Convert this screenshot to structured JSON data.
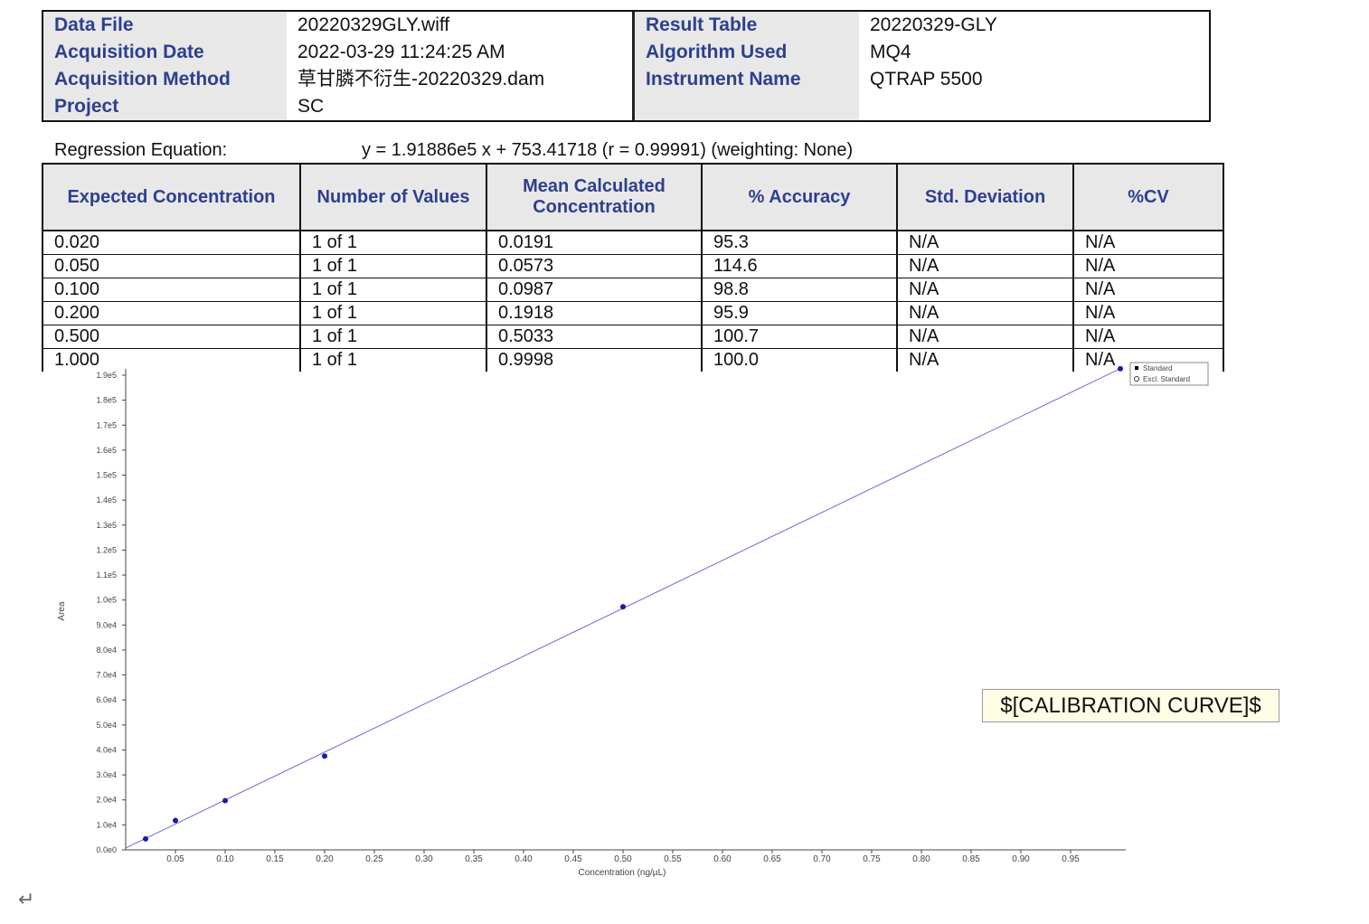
{
  "header": {
    "left": [
      {
        "label": "Data File",
        "value": "20220329GLY.wiff"
      },
      {
        "label": "Acquisition Date",
        "value": "2022-03-29 11:24:25 AM"
      },
      {
        "label": "Acquisition Method",
        "value": "草甘膦不衍生-20220329.dam"
      },
      {
        "label": "Project",
        "value": "SC"
      }
    ],
    "right": [
      {
        "label": "Result Table",
        "value": "20220329-GLY"
      },
      {
        "label": "Algorithm Used",
        "value": "MQ4"
      },
      {
        "label": "Instrument Name",
        "value": "QTRAP 5500"
      },
      {
        "label": "",
        "value": ""
      }
    ]
  },
  "regression": {
    "label": "Regression Equation:",
    "equation": "y = 1.91886e5 x + 753.41718 (r = 0.99991)  (weighting: None)"
  },
  "table": {
    "headers": [
      "Expected Concentration",
      "Number of Values",
      "Mean Calculated Concentration",
      "% Accuracy",
      "Std. Deviation",
      "%CV"
    ],
    "rows": [
      [
        "0.020",
        "1 of 1",
        "0.0191",
        "95.3",
        "N/A",
        "N/A"
      ],
      [
        "0.050",
        "1 of 1",
        "0.0573",
        "114.6",
        "N/A",
        "N/A"
      ],
      [
        "0.100",
        "1 of 1",
        "0.0987",
        "98.8",
        "N/A",
        "N/A"
      ],
      [
        "0.200",
        "1 of 1",
        "0.1918",
        "95.9",
        "N/A",
        "N/A"
      ],
      [
        "0.500",
        "1 of 1",
        "0.5033",
        "100.7",
        "N/A",
        "N/A"
      ],
      [
        "1.000",
        "1 of 1",
        "0.9998",
        "100.0",
        "N/A",
        "N/A"
      ]
    ]
  },
  "chart_data": {
    "type": "scatter",
    "xlabel": "Concentration (ng/µL)",
    "ylabel": "Area",
    "xlim": [
      0,
      1.0
    ],
    "ylim": [
      0,
      190000
    ],
    "x_ticks": [
      "0.05",
      "0.10",
      "0.15",
      "0.20",
      "0.25",
      "0.30",
      "0.35",
      "0.40",
      "0.45",
      "0.50",
      "0.55",
      "0.60",
      "0.65",
      "0.70",
      "0.75",
      "0.80",
      "0.85",
      "0.90",
      "0.95"
    ],
    "y_ticks": [
      "0.0e0",
      "1.0e4",
      "2.0e4",
      "3.0e4",
      "4.0e4",
      "5.0e4",
      "6.0e4",
      "7.0e4",
      "8.0e4",
      "9.0e4",
      "1.0e5",
      "1.1e5",
      "1.2e5",
      "1.3e5",
      "1.4e5",
      "1.5e5",
      "1.6e5",
      "1.7e5",
      "1.8e5",
      "1.9e5"
    ],
    "points": {
      "x": [
        0.02,
        0.05,
        0.1,
        0.2,
        0.5,
        1.0
      ],
      "y": [
        4400,
        11750,
        19700,
        37550,
        97300,
        192600
      ]
    },
    "fit": {
      "slope": 191886,
      "intercept": 753.41718
    },
    "legend": [
      "Standard",
      "Excl. Standard"
    ],
    "legend_position": "top-right",
    "point_color": "#1a1aa8",
    "line_color": "#6b6bd6"
  },
  "placeholder": "$[CALIBRATION CURVE]$",
  "return_mark": "↵"
}
